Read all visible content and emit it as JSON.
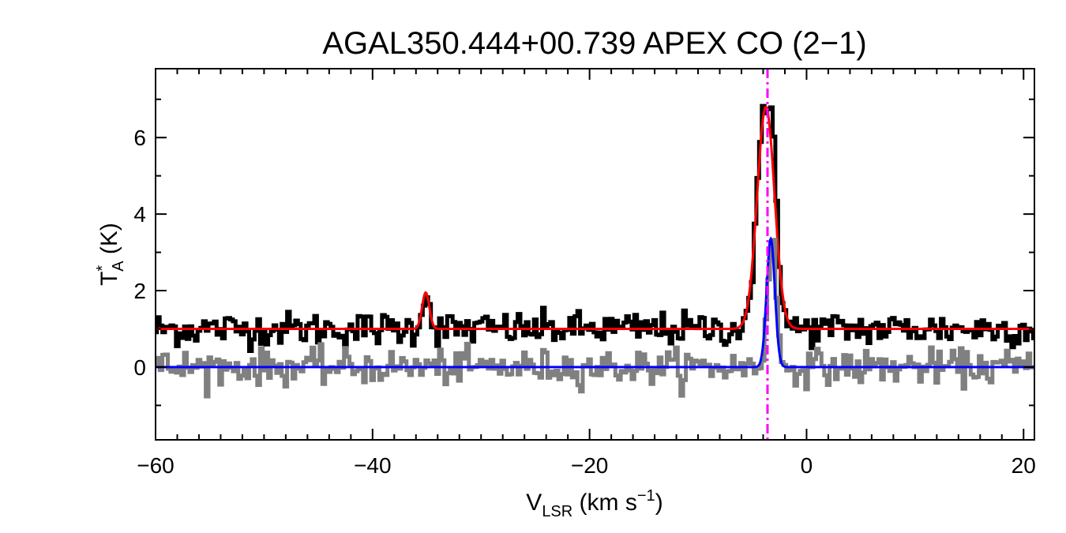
{
  "chart_data": {
    "type": "line",
    "title": "AGAL350.444+00.739  APEX CO (2−1)",
    "xlabel": {
      "base": "V",
      "sub": "LSR",
      "unit_pre": " (km s",
      "sup": "−1",
      "unit_post": ")"
    },
    "ylabel": {
      "base": "T",
      "sup": "*",
      "sub": "A",
      "unit": " (K)"
    },
    "xlim": [
      -60,
      21
    ],
    "ylim": [
      -1.9,
      7.8
    ],
    "x_ticks": [
      -60,
      -40,
      -20,
      0,
      20
    ],
    "x_tick_labels": [
      "−60",
      "−40",
      "−20",
      "0",
      "20"
    ],
    "x_minor_step": 2,
    "y_ticks": [
      0,
      2,
      4,
      6
    ],
    "y_tick_labels": [
      "0",
      "2",
      "4",
      "6"
    ],
    "y_minor_step": 1,
    "grid": false,
    "series": [
      {
        "kind": "observed-spectrum-offset",
        "color": "#000000",
        "baseline": 1.0,
        "noise": 0.22,
        "components": [
          {
            "center": -35.1,
            "amp": 0.95,
            "sigma": 0.35
          },
          {
            "center": -3.8,
            "amp": 5.6,
            "sigma": 0.75
          },
          {
            "center": -3.0,
            "amp": 2.2,
            "sigma": 0.3
          }
        ]
      },
      {
        "kind": "fit-offset",
        "color": "#ff0000",
        "baseline": 1.0,
        "components": [
          {
            "center": -35.1,
            "amp": 0.95,
            "sigma": 0.33
          },
          {
            "center": -3.75,
            "amp": 5.8,
            "sigma": 0.8
          }
        ]
      },
      {
        "kind": "observed-spectrum",
        "color": "#808080",
        "baseline": 0.0,
        "noise": 0.22,
        "components": [
          {
            "center": -3.2,
            "amp": 3.5,
            "sigma": 0.38
          }
        ]
      },
      {
        "kind": "fit",
        "color": "#0000ff",
        "baseline": 0.0,
        "components": [
          {
            "center": -3.3,
            "amp": 3.35,
            "sigma": 0.38
          }
        ]
      }
    ],
    "vline": {
      "x": -3.6,
      "color": "#ff00ff",
      "style": "dash-dot"
    }
  }
}
